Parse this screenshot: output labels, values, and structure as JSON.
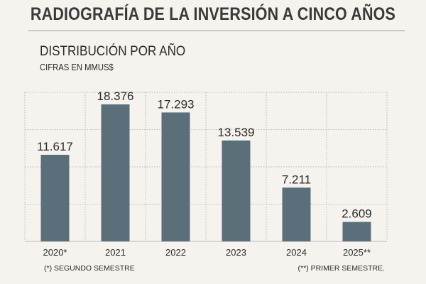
{
  "header": {
    "title": "RADIOGRAFÍA DE LA INVERSIÓN A CINCO AÑOS",
    "subtitle": "DISTRIBUCIÓN POR AÑO",
    "units": "CIFRAS EN MMUS$"
  },
  "footnotes": {
    "left": "(*) SEGUNDO SEMESTRE",
    "right": "(**) PRIMER SEMESTRE."
  },
  "colors": {
    "bar": "#5a6f7a",
    "grid": "#b8b8b8",
    "background": "#f6f3ee",
    "text": "#2b2b2b"
  },
  "chart_data": {
    "type": "bar",
    "title": "DISTRIBUCIÓN POR AÑO",
    "ylabel": "CIFRAS EN MMUS$",
    "xlabel": "",
    "categories": [
      "2020*",
      "2021",
      "2022",
      "2023",
      "2024",
      "2025**"
    ],
    "values": [
      11617,
      18376,
      17293,
      13539,
      7211,
      2609
    ],
    "value_labels": [
      "11.617",
      "18.376",
      "17.293",
      "13.539",
      "7.211",
      "2.609"
    ],
    "ylim": [
      0,
      20000
    ],
    "grid": true
  }
}
